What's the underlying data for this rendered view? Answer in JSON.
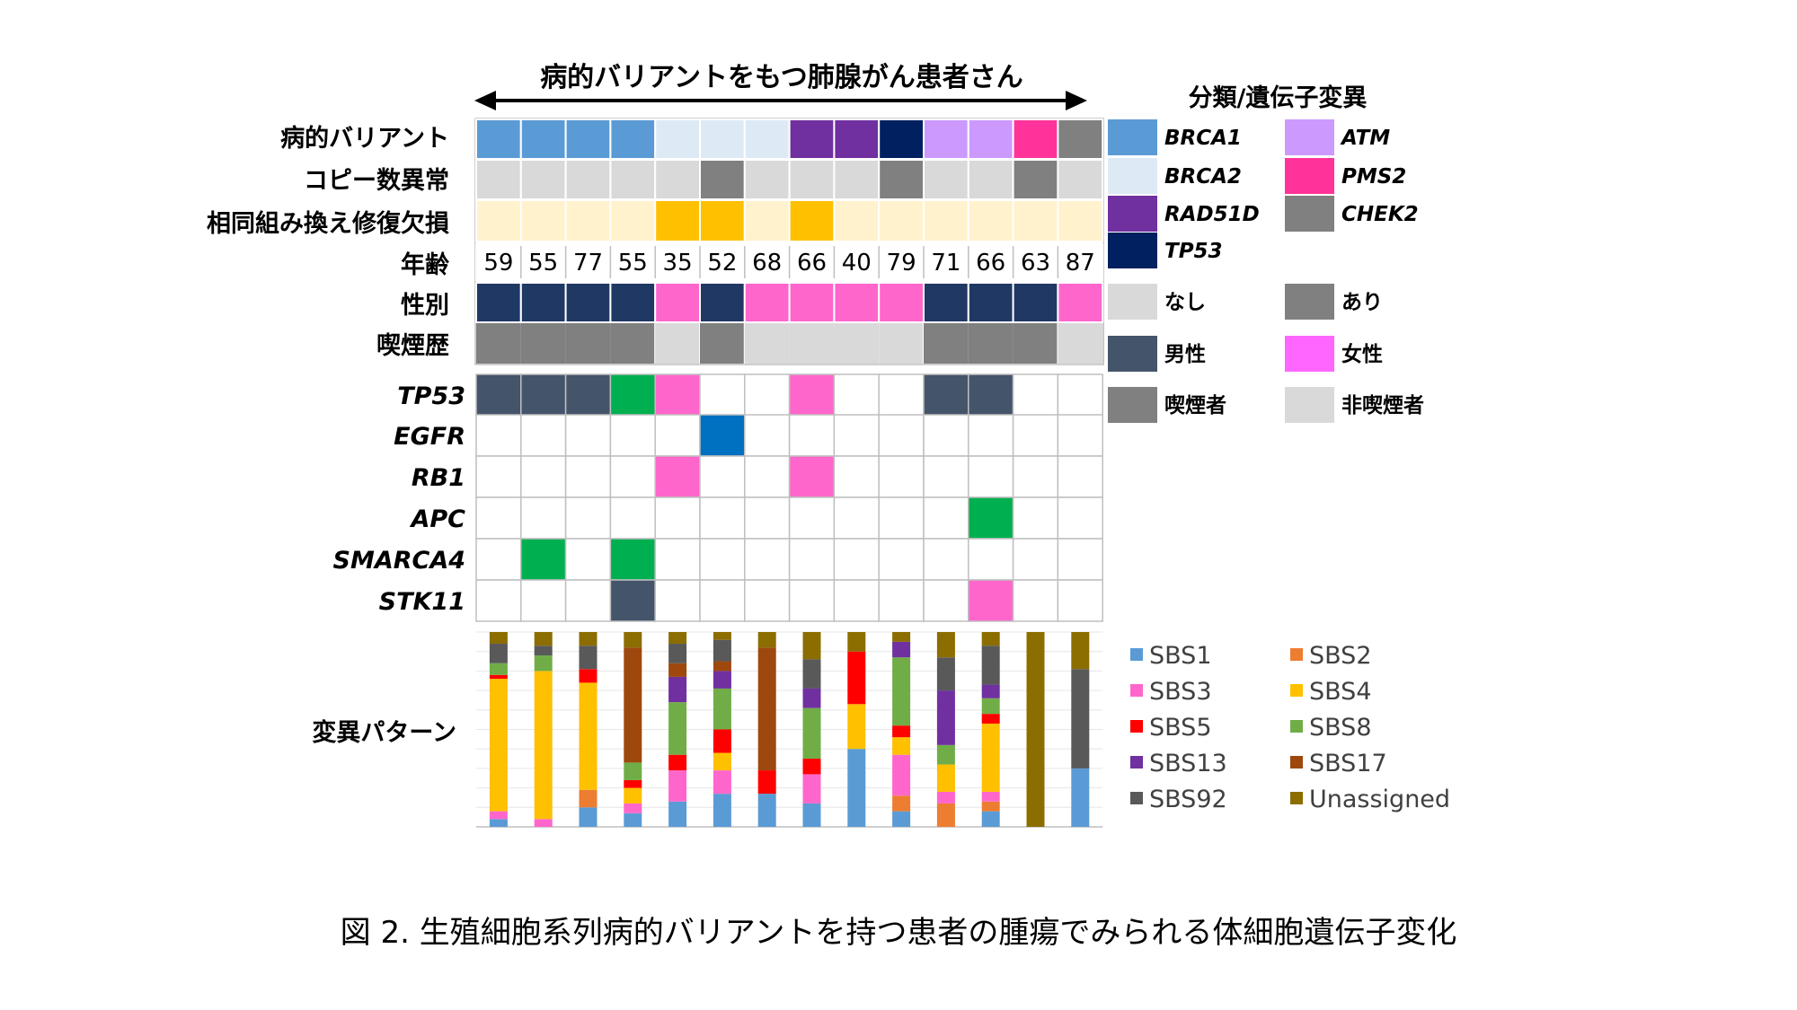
{
  "header": {
    "title": "病的バリアントをもつ肺腺がん患者さん"
  },
  "caption": "図 2.  生殖細胞系列病的バリアントを持つ患者の腫瘍でみられる体細胞遺伝子変化",
  "clinical_rows": [
    {
      "key": "variant",
      "label": "病的バリアント"
    },
    {
      "key": "cnv",
      "label": "コピー数異常"
    },
    {
      "key": "hrd",
      "label": "相同組み換え修復欠損"
    },
    {
      "key": "age",
      "label": "年齢"
    },
    {
      "key": "sex",
      "label": "性別"
    },
    {
      "key": "smoking",
      "label": "喫煙歴"
    }
  ],
  "gene_rows": [
    "TP53",
    "EGFR",
    "RB1",
    "APC",
    "SMARCA4",
    "STK11"
  ],
  "signature_label": "変異パターン",
  "colors": {
    "BRCA1": "#5b9bd5",
    "BRCA2": "#ddeaf6",
    "RAD51D": "#7030a0",
    "TP53": "#002060",
    "ATM": "#cc99ff",
    "PMS2": "#ff3399",
    "CHEK2": "#808080",
    "cnv_none": "#d9d9d9",
    "cnv_yes": "#808080",
    "hrd_none": "#fff2cc",
    "hrd_yes": "#ffc000",
    "male": "#203864",
    "female": "#ff66cc",
    "smoker": "#808080",
    "nonsmoker": "#d9d9d9",
    "mut_male": "#44546a",
    "mut_green": "#00b050",
    "mut_pink": "#ff66cc",
    "mut_blue": "#0070c0",
    "SBS1": "#5b9bd5",
    "SBS2": "#ed7d31",
    "SBS3": "#ff66cc",
    "SBS4": "#ffc000",
    "SBS5": "#ff0000",
    "SBS8": "#70ad47",
    "SBS13": "#7030a0",
    "SBS17": "#9e480e",
    "SBS92": "#595959",
    "Unassigned": "#8c6d00"
  },
  "legend": {
    "title": "分類/遺伝子変異",
    "items": [
      {
        "label": "BRCA1",
        "color": "#5b9bd5",
        "italic": true
      },
      {
        "label": "BRCA2",
        "color": "#ddeaf6",
        "italic": true
      },
      {
        "label": "RAD51D",
        "color": "#7030a0",
        "italic": true
      },
      {
        "label": "TP53",
        "color": "#002060",
        "italic": true
      },
      {
        "label": "ATM",
        "color": "#cc99ff",
        "italic": true
      },
      {
        "label": "PMS2",
        "color": "#ff3399",
        "italic": true
      },
      {
        "label": "CHEK2",
        "color": "#808080",
        "italic": true
      },
      {
        "label": "なし",
        "color": "#d9d9d9",
        "italic": false
      },
      {
        "label": "あり",
        "color": "#808080",
        "italic": false
      },
      {
        "label": "男性",
        "color": "#44546a",
        "italic": false
      },
      {
        "label": "女性",
        "color": "#ff66ff",
        "italic": false
      },
      {
        "label": "喫煙者",
        "color": "#808080",
        "italic": false
      },
      {
        "label": "非喫煙者",
        "color": "#d9d9d9",
        "italic": false
      }
    ],
    "sbs_items": [
      "SBS1",
      "SBS2",
      "SBS3",
      "SBS4",
      "SBS5",
      "SBS8",
      "SBS13",
      "SBS17",
      "SBS92",
      "Unassigned"
    ]
  },
  "chart_data": {
    "type": "heatmap",
    "patients": [
      {
        "variant": "BRCA1",
        "cnv": "none",
        "hrd": "none",
        "age": "59",
        "sex": "male",
        "smoking": "smoker"
      },
      {
        "variant": "BRCA1",
        "cnv": "none",
        "hrd": "none",
        "age": "55",
        "sex": "male",
        "smoking": "smoker"
      },
      {
        "variant": "BRCA1",
        "cnv": "none",
        "hrd": "none",
        "age": "77",
        "sex": "male",
        "smoking": "smoker"
      },
      {
        "variant": "BRCA1",
        "cnv": "none",
        "hrd": "none",
        "age": "55",
        "sex": "male",
        "smoking": "smoker"
      },
      {
        "variant": "BRCA2",
        "cnv": "none",
        "hrd": "yes",
        "age": "35",
        "sex": "female",
        "smoking": "nonsmoker"
      },
      {
        "variant": "BRCA2",
        "cnv": "yes",
        "hrd": "yes",
        "age": "52",
        "sex": "male",
        "smoking": "smoker"
      },
      {
        "variant": "BRCA2",
        "cnv": "none",
        "hrd": "none",
        "age": "68",
        "sex": "female",
        "smoking": "nonsmoker"
      },
      {
        "variant": "RAD51D",
        "cnv": "none",
        "hrd": "yes",
        "age": "66",
        "sex": "female",
        "smoking": "nonsmoker"
      },
      {
        "variant": "RAD51D",
        "cnv": "none",
        "hrd": "none",
        "age": "40",
        "sex": "female",
        "smoking": "nonsmoker"
      },
      {
        "variant": "TP53",
        "cnv": "yes",
        "hrd": "none",
        "age": "79",
        "sex": "female",
        "smoking": "nonsmoker"
      },
      {
        "variant": "ATM",
        "cnv": "none",
        "hrd": "none",
        "age": "71",
        "sex": "male",
        "smoking": "smoker"
      },
      {
        "variant": "ATM",
        "cnv": "none",
        "hrd": "none",
        "age": "66",
        "sex": "male",
        "smoking": "smoker"
      },
      {
        "variant": "PMS2",
        "cnv": "yes",
        "hrd": "none",
        "age": "63",
        "sex": "male",
        "smoking": "smoker"
      },
      {
        "variant": "CHEK2",
        "cnv": "none",
        "hrd": "none",
        "age": "87",
        "sex": "female",
        "smoking": "nonsmoker"
      }
    ],
    "mutations": {
      "TP53": [
        "mut_male",
        "mut_male",
        "mut_male",
        "mut_green",
        "mut_pink",
        null,
        null,
        "mut_pink",
        null,
        null,
        "mut_male",
        "mut_male",
        null,
        null
      ],
      "EGFR": [
        null,
        null,
        null,
        null,
        null,
        "mut_blue",
        null,
        null,
        null,
        null,
        null,
        null,
        null,
        null
      ],
      "RB1": [
        null,
        null,
        null,
        null,
        "mut_pink",
        null,
        null,
        "mut_pink",
        null,
        null,
        null,
        null,
        null,
        null
      ],
      "APC": [
        null,
        null,
        null,
        null,
        null,
        null,
        null,
        null,
        null,
        null,
        null,
        "mut_green",
        null,
        null
      ],
      "SMARCA4": [
        null,
        "mut_green",
        null,
        "mut_green",
        null,
        null,
        null,
        null,
        null,
        null,
        null,
        null,
        null,
        null
      ],
      "STK11": [
        null,
        null,
        null,
        "mut_male",
        null,
        null,
        null,
        null,
        null,
        null,
        null,
        "mut_pink",
        null,
        null
      ]
    },
    "signatures": [
      [
        [
          "SBS1",
          4
        ],
        [
          "SBS3",
          4
        ],
        [
          "SBS4",
          68
        ],
        [
          "SBS5",
          2
        ],
        [
          "SBS8",
          6
        ],
        [
          "SBS92",
          10
        ],
        [
          "Unassigned",
          6
        ]
      ],
      [
        [
          "SBS3",
          4
        ],
        [
          "SBS4",
          76
        ],
        [
          "SBS8",
          8
        ],
        [
          "SBS92",
          5
        ],
        [
          "Unassigned",
          7
        ]
      ],
      [
        [
          "SBS1",
          10
        ],
        [
          "SBS2",
          9
        ],
        [
          "SBS4",
          55
        ],
        [
          "SBS5",
          7
        ],
        [
          "SBS92",
          12
        ],
        [
          "Unassigned",
          7
        ]
      ],
      [
        [
          "SBS1",
          7
        ],
        [
          "SBS3",
          5
        ],
        [
          "SBS4",
          8
        ],
        [
          "SBS5",
          4
        ],
        [
          "SBS8",
          9
        ],
        [
          "SBS17",
          59
        ],
        [
          "Unassigned",
          8
        ]
      ],
      [
        [
          "SBS1",
          13
        ],
        [
          "SBS3",
          16
        ],
        [
          "SBS5",
          8
        ],
        [
          "SBS8",
          27
        ],
        [
          "SBS13",
          13
        ],
        [
          "SBS17",
          7
        ],
        [
          "SBS92",
          10
        ],
        [
          "Unassigned",
          6
        ]
      ],
      [
        [
          "SBS1",
          17
        ],
        [
          "SBS3",
          12
        ],
        [
          "SBS4",
          9
        ],
        [
          "SBS5",
          12
        ],
        [
          "SBS8",
          21
        ],
        [
          "SBS13",
          9
        ],
        [
          "SBS17",
          5
        ],
        [
          "SBS92",
          11
        ],
        [
          "Unassigned",
          4
        ]
      ],
      [
        [
          "SBS1",
          17
        ],
        [
          "SBS5",
          12
        ],
        [
          "SBS17",
          63
        ],
        [
          "Unassigned",
          8
        ]
      ],
      [
        [
          "SBS1",
          12
        ],
        [
          "SBS3",
          15
        ],
        [
          "SBS5",
          8
        ],
        [
          "SBS8",
          26
        ],
        [
          "SBS13",
          10
        ],
        [
          "SBS92",
          15
        ],
        [
          "Unassigned",
          14
        ]
      ],
      [
        [
          "SBS1",
          40
        ],
        [
          "SBS4",
          23
        ],
        [
          "SBS5",
          27
        ],
        [
          "Unassigned",
          10
        ]
      ],
      [
        [
          "SBS1",
          8
        ],
        [
          "SBS2",
          8
        ],
        [
          "SBS3",
          21
        ],
        [
          "SBS4",
          9
        ],
        [
          "SBS5",
          6
        ],
        [
          "SBS8",
          35
        ],
        [
          "SBS13",
          8
        ],
        [
          "Unassigned",
          5
        ]
      ],
      [
        [
          "SBS2",
          12
        ],
        [
          "SBS3",
          6
        ],
        [
          "SBS4",
          14
        ],
        [
          "SBS8",
          10
        ],
        [
          "SBS13",
          28
        ],
        [
          "SBS92",
          17
        ],
        [
          "Unassigned",
          13
        ]
      ],
      [
        [
          "SBS1",
          8
        ],
        [
          "SBS2",
          5
        ],
        [
          "SBS3",
          5
        ],
        [
          "SBS4",
          35
        ],
        [
          "SBS5",
          5
        ],
        [
          "SBS8",
          8
        ],
        [
          "SBS13",
          7
        ],
        [
          "SBS92",
          20
        ],
        [
          "Unassigned",
          7
        ]
      ],
      [
        [
          "Unassigned",
          100
        ]
      ],
      [
        [
          "SBS1",
          30
        ],
        [
          "SBS92",
          51
        ],
        [
          "Unassigned",
          19
        ]
      ]
    ]
  }
}
